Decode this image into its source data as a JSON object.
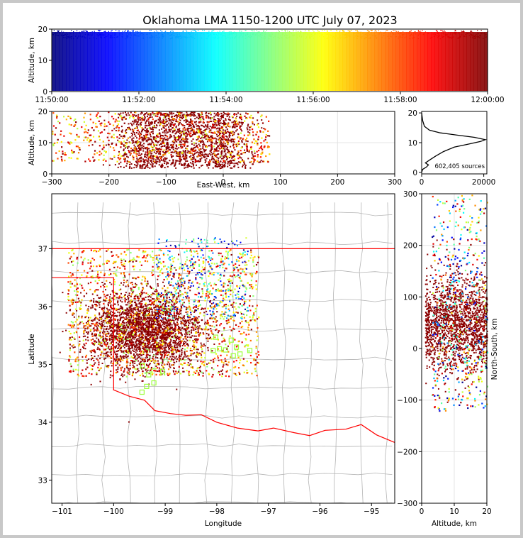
{
  "title": "Oklahoma LMA 1150-1200 UTC July 07, 2023",
  "colors": {
    "frame": "#c8c8c8",
    "boundary_red": "#ff0000",
    "county_gray": "#b4b4b4",
    "station_marker": "#9cff3a",
    "histogram": "#000000"
  },
  "chart_data": [
    {
      "id": "time-height",
      "type": "scatter",
      "ylabel": "Altitude, km",
      "ylim": [
        0,
        20
      ],
      "yticks": [
        "0",
        "10",
        "20"
      ],
      "xlim": [
        "11:50:00",
        "12:00:00"
      ],
      "xticks": [
        "11:50:00",
        "11:52:00",
        "11:54:00",
        "11:56:00",
        "11:58:00",
        "12:00:00"
      ],
      "colormap": "jet",
      "color_by": "time",
      "description_density": "continuous band of sources 0-20 km throughout the 10 minutes"
    },
    {
      "id": "east-west-altitude",
      "type": "scatter",
      "xlabel": "East-West, km",
      "ylabel": "Altitude, km",
      "xlim": [
        -300,
        300
      ],
      "ylim": [
        0,
        20
      ],
      "xticks": [
        "−300",
        "−200",
        "−100",
        "0",
        "100",
        "200",
        "300"
      ],
      "yticks": [
        "0",
        "10",
        "20"
      ],
      "source_extent_x": [
        -300,
        80
      ],
      "dense_core_x": [
        -180,
        40
      ]
    },
    {
      "id": "altitude-histogram",
      "type": "line",
      "xlim": [
        0,
        21000
      ],
      "ylim": [
        -0.5,
        20.5
      ],
      "xticks": [
        "0",
        "20000"
      ],
      "yticks": [
        "0",
        "10",
        "20"
      ],
      "annotation": "602,405 sources",
      "x": [
        0,
        300,
        1500,
        2200,
        1200,
        2600,
        4500,
        7000,
        10500,
        15000,
        19000,
        20500,
        17000,
        11000,
        6000,
        2500,
        900,
        300,
        0
      ],
      "y": [
        0,
        1.0,
        1.8,
        2.5,
        3.2,
        4.2,
        5.5,
        7.0,
        8.5,
        9.5,
        10.4,
        11.0,
        11.8,
        12.6,
        13.3,
        14.2,
        15.5,
        17.5,
        20
      ]
    },
    {
      "id": "plan-view-map",
      "type": "scatter",
      "xlabel": "Longitude",
      "ylabel": "Latitude",
      "xlim": [
        -101.2,
        -94.55
      ],
      "ylim": [
        32.6,
        37.95
      ],
      "xticks": [
        "−101",
        "−100",
        "−99",
        "−98",
        "−97",
        "−96",
        "−95"
      ],
      "yticks": [
        "33",
        "34",
        "35",
        "36",
        "37"
      ],
      "storm_core": {
        "lon": [
          -100.2,
          -97.5
        ],
        "lat": [
          34.9,
          36.6
        ]
      },
      "stations": [
        {
          "lon": -99.44,
          "lat": 34.98
        },
        {
          "lon": -99.32,
          "lat": 34.82
        },
        {
          "lon": -99.22,
          "lat": 34.68
        },
        {
          "lon": -99.36,
          "lat": 34.62
        },
        {
          "lon": -99.45,
          "lat": 34.52
        },
        {
          "lon": -99.05,
          "lat": 34.88
        },
        {
          "lon": -98.02,
          "lat": 35.47
        },
        {
          "lon": -98.07,
          "lat": 35.24
        },
        {
          "lon": -97.95,
          "lat": 35.27
        },
        {
          "lon": -97.83,
          "lat": 35.25
        },
        {
          "lon": -97.72,
          "lat": 35.42
        },
        {
          "lon": -97.68,
          "lat": 35.15
        },
        {
          "lon": -97.55,
          "lat": 35.18
        },
        {
          "lon": -97.36,
          "lat": 35.24
        },
        {
          "lon": -97.62,
          "lat": 35.3
        }
      ]
    },
    {
      "id": "altitude-north-south",
      "type": "scatter",
      "xlabel": "Altitude, km",
      "ylabel": "North-South, km",
      "xlim": [
        0,
        20
      ],
      "ylim": [
        -300,
        300
      ],
      "xticks": [
        "0",
        "10",
        "20"
      ],
      "yticks": [
        "−300",
        "−200",
        "−100",
        "0",
        "100",
        "200",
        "300"
      ],
      "dense_core_y": [
        -40,
        140
      ]
    }
  ]
}
